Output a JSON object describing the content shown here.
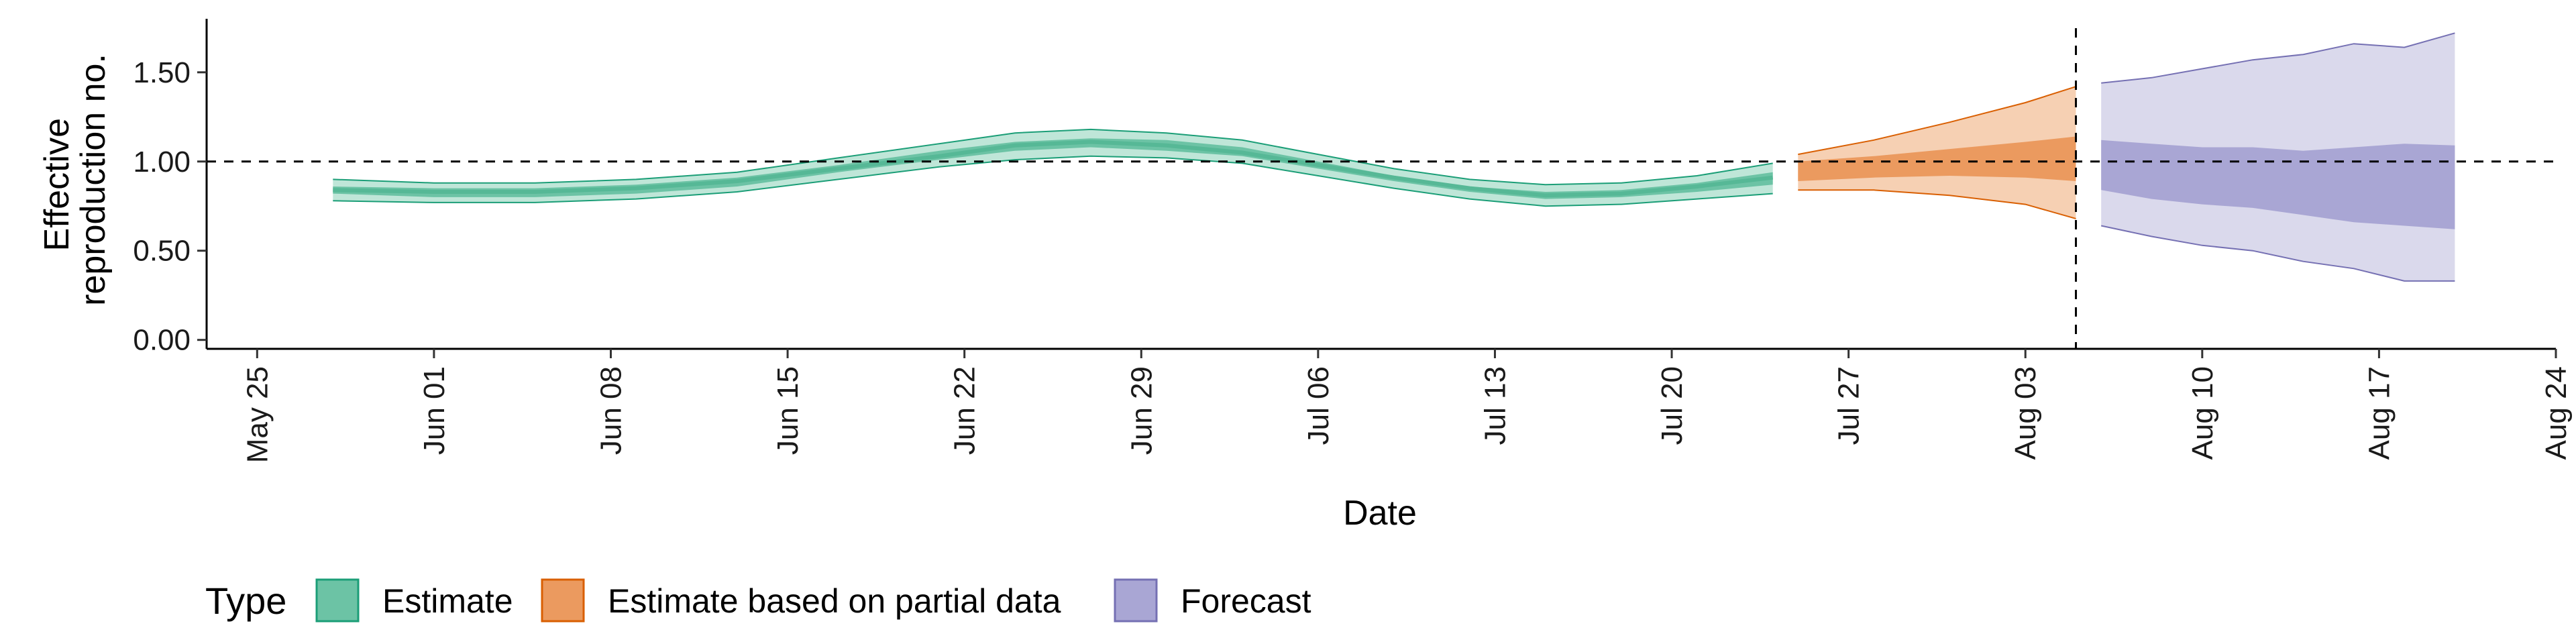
{
  "chart_data": {
    "type": "area",
    "xlabel": "Date",
    "ylabel_lines": [
      "Effective",
      "reproduction no."
    ],
    "x_domain": [
      "2020-05-23",
      "2020-08-24"
    ],
    "ylim": [
      -0.05,
      1.8
    ],
    "y_ticks": [
      {
        "value": 0.0,
        "label": "0.00"
      },
      {
        "value": 0.5,
        "label": "0.50"
      },
      {
        "value": 1.0,
        "label": "1.00"
      },
      {
        "value": 1.5,
        "label": "1.50"
      }
    ],
    "x_ticks": [
      {
        "date": "2020-05-25",
        "label": "May 25"
      },
      {
        "date": "2020-06-01",
        "label": "Jun 01"
      },
      {
        "date": "2020-06-08",
        "label": "Jun 08"
      },
      {
        "date": "2020-06-15",
        "label": "Jun 15"
      },
      {
        "date": "2020-06-22",
        "label": "Jun 22"
      },
      {
        "date": "2020-06-29",
        "label": "Jun 29"
      },
      {
        "date": "2020-07-06",
        "label": "Jul 06"
      },
      {
        "date": "2020-07-13",
        "label": "Jul 13"
      },
      {
        "date": "2020-07-20",
        "label": "Jul 20"
      },
      {
        "date": "2020-07-27",
        "label": "Jul 27"
      },
      {
        "date": "2020-08-03",
        "label": "Aug 03"
      },
      {
        "date": "2020-08-10",
        "label": "Aug 10"
      },
      {
        "date": "2020-08-17",
        "label": "Aug 17"
      },
      {
        "date": "2020-08-24",
        "label": "Aug 24"
      }
    ],
    "reference_line_y": 1.0,
    "reference_line_date": "2020-08-05",
    "grid": false,
    "legend": {
      "title": "Type",
      "position": "bottom-left",
      "entries": [
        {
          "label": "Estimate",
          "fill": "#6cc3a5",
          "stroke": "#1b9e77"
        },
        {
          "label": "Estimate based on partial data",
          "fill": "#eb9a5f",
          "stroke": "#d95f02"
        },
        {
          "label": "Forecast",
          "fill": "#a9a6d4",
          "stroke": "#7570b3"
        }
      ]
    },
    "series": [
      {
        "name": "Estimate",
        "color": "#1b9e77",
        "outer_fill": "#bfe6d8",
        "inner_fill": "#6cc3a5",
        "median_fill": "#56b896",
        "x": [
          "2020-05-28",
          "2020-06-01",
          "2020-06-05",
          "2020-06-09",
          "2020-06-13",
          "2020-06-17",
          "2020-06-21",
          "2020-06-24",
          "2020-06-27",
          "2020-06-30",
          "2020-07-03",
          "2020-07-06",
          "2020-07-09",
          "2020-07-12",
          "2020-07-15",
          "2020-07-18",
          "2020-07-21",
          "2020-07-24"
        ],
        "outer_upper": [
          0.9,
          0.88,
          0.88,
          0.9,
          0.94,
          1.02,
          1.1,
          1.16,
          1.18,
          1.16,
          1.12,
          1.04,
          0.96,
          0.9,
          0.87,
          0.88,
          0.92,
          0.99
        ],
        "outer_lower": [
          0.78,
          0.77,
          0.77,
          0.79,
          0.83,
          0.9,
          0.97,
          1.01,
          1.03,
          1.02,
          0.99,
          0.92,
          0.85,
          0.79,
          0.75,
          0.76,
          0.79,
          0.82
        ],
        "inner_upper": [
          0.86,
          0.85,
          0.85,
          0.87,
          0.91,
          0.98,
          1.06,
          1.11,
          1.13,
          1.12,
          1.08,
          1.0,
          0.92,
          0.86,
          0.83,
          0.84,
          0.88,
          0.94
        ],
        "inner_lower": [
          0.82,
          0.8,
          0.8,
          0.82,
          0.86,
          0.94,
          1.01,
          1.06,
          1.08,
          1.06,
          1.03,
          0.96,
          0.89,
          0.83,
          0.79,
          0.8,
          0.83,
          0.87
        ],
        "median": [
          0.84,
          0.83,
          0.83,
          0.85,
          0.89,
          0.96,
          1.03,
          1.09,
          1.11,
          1.09,
          1.05,
          0.98,
          0.91,
          0.85,
          0.81,
          0.82,
          0.86,
          0.91
        ]
      },
      {
        "name": "Estimate based on partial data",
        "color": "#d95f02",
        "outer_fill": "#f6d0b3",
        "inner_fill": "#eb9a5f",
        "x": [
          "2020-07-25",
          "2020-07-28",
          "2020-07-31",
          "2020-08-03",
          "2020-08-05"
        ],
        "outer_upper": [
          1.04,
          1.12,
          1.22,
          1.33,
          1.42
        ],
        "outer_lower": [
          0.84,
          0.84,
          0.81,
          0.76,
          0.68
        ],
        "inner_upper": [
          1.0,
          1.03,
          1.07,
          1.11,
          1.14
        ],
        "inner_lower": [
          0.89,
          0.91,
          0.92,
          0.91,
          0.89
        ]
      },
      {
        "name": "Forecast",
        "color": "#7570b3",
        "outer_fill": "#dad9ec",
        "inner_fill": "#a9a6d4",
        "x": [
          "2020-08-06",
          "2020-08-08",
          "2020-08-10",
          "2020-08-12",
          "2020-08-14",
          "2020-08-16",
          "2020-08-18",
          "2020-08-20"
        ],
        "outer_upper": [
          1.44,
          1.47,
          1.52,
          1.57,
          1.6,
          1.66,
          1.64,
          1.72
        ],
        "outer_lower": [
          0.64,
          0.58,
          0.53,
          0.5,
          0.44,
          0.4,
          0.33,
          0.33
        ],
        "inner_upper": [
          1.12,
          1.1,
          1.08,
          1.08,
          1.06,
          1.08,
          1.1,
          1.09
        ],
        "inner_lower": [
          0.84,
          0.79,
          0.76,
          0.74,
          0.7,
          0.66,
          0.64,
          0.62
        ]
      }
    ]
  }
}
